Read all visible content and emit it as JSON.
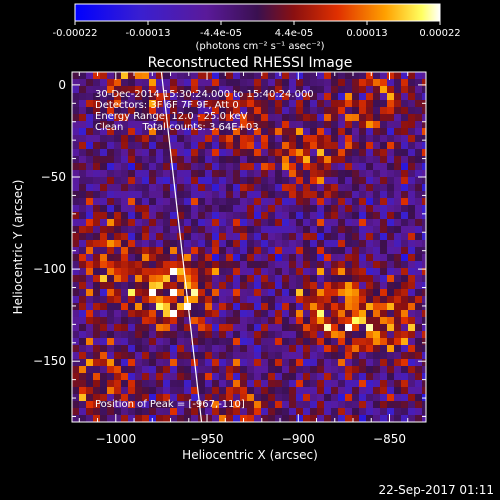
{
  "colorbar": {
    "ticks": [
      "-0.00022",
      "-0.00013",
      "-4.4e-05",
      "4.4e-05",
      "0.00013",
      "0.00022"
    ],
    "unit_label": "(photons cm⁻² s⁻¹ asec⁻²)"
  },
  "chart_data": {
    "type": "heatmap",
    "title": "Reconstructed RHESSI Image",
    "xlabel": "Heliocentric X (arcsec)",
    "ylabel": "Heliocentric Y (arcsec)",
    "xlim": [
      -1024,
      -830
    ],
    "ylim": [
      -183,
      7
    ],
    "x_ticks": [
      -1000,
      -950,
      -900,
      -850
    ],
    "y_ticks": [
      0,
      -50,
      -100,
      -150
    ],
    "x_tick_labels": [
      "−1000",
      "−950",
      "−900",
      "−850"
    ],
    "y_tick_labels": [
      "0",
      "−50",
      "−100",
      "−150"
    ],
    "colorbar_range": [
      -0.00022,
      0.00022
    ],
    "colormap": "blue-purple-red-yellow-white",
    "info_lines": [
      "30-Dec-2014 15:30:24.000 to 15:40:24.000",
      "Detectors: 3F 6F 7F 9F, Att 0",
      "Energy Range: 12.0 - 25.0 keV",
      "Clean      Total counts: 3.64E+03"
    ],
    "peak_label": "Position of Peak = [-967,-110]",
    "peak": {
      "x": -967,
      "y": -110
    },
    "limb_line": [
      {
        "x": -975,
        "y": 7
      },
      {
        "x": -953,
        "y": -183
      }
    ],
    "sources": [
      {
        "x": -968,
        "y": -112,
        "peak": 1.0
      },
      {
        "x": -878,
        "y": -122,
        "peak": 0.85
      },
      {
        "x": -850,
        "y": -130,
        "peak": 0.6
      },
      {
        "x": -895,
        "y": -40,
        "peak": 0.55
      },
      {
        "x": -1005,
        "y": -95,
        "peak": 0.55
      },
      {
        "x": -860,
        "y": -10,
        "peak": 0.5
      },
      {
        "x": -990,
        "y": -5,
        "peak": 0.5
      },
      {
        "x": -935,
        "y": -175,
        "peak": 0.45
      },
      {
        "x": -1010,
        "y": -160,
        "peak": 0.45
      },
      {
        "x": -930,
        "y": -20,
        "peak": 0.4
      }
    ]
  },
  "footer": {
    "timestamp": "22-Sep-2017 01:11"
  }
}
